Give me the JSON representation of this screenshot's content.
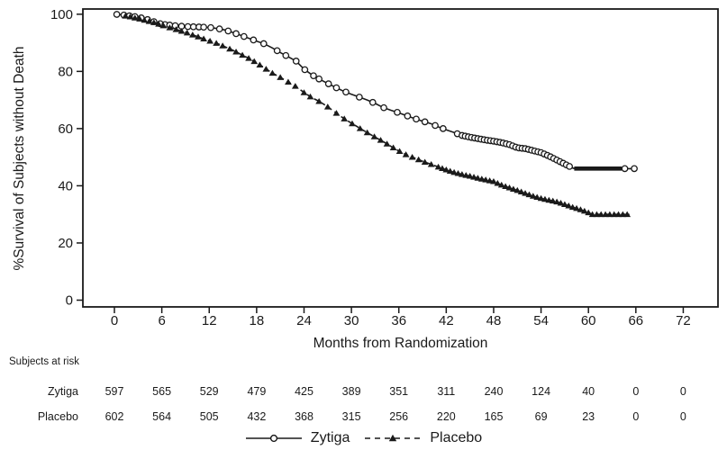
{
  "colors": {
    "ink": "#1a1a1a",
    "background": "#ffffff"
  },
  "chart_data": {
    "type": "line",
    "subtype": "kaplan-meier",
    "title": "",
    "xlabel": "Months from Randomization",
    "ylabel": "%Survival of Subjects without Death",
    "xlim": [
      0,
      72
    ],
    "ylim": [
      0,
      100
    ],
    "x_ticks": [
      0,
      6,
      12,
      18,
      24,
      30,
      36,
      42,
      48,
      54,
      60,
      66,
      72
    ],
    "y_ticks": [
      0,
      20,
      40,
      60,
      80,
      100
    ],
    "grid": false,
    "legend_position": "bottom-center",
    "series": [
      {
        "name": "Zytiga",
        "line_style": "solid",
        "marker": "open-circle",
        "points": [
          [
            0,
            100
          ],
          [
            1,
            99.8
          ],
          [
            2,
            99.4
          ],
          [
            3,
            99.0
          ],
          [
            4,
            98.3
          ],
          [
            5,
            97.4
          ],
          [
            6,
            96.5
          ],
          [
            7,
            96.2
          ],
          [
            8,
            95.9
          ],
          [
            9,
            95.7
          ],
          [
            10,
            95.6
          ],
          [
            11,
            95.5
          ],
          [
            12,
            95.4
          ],
          [
            13,
            95.0
          ],
          [
            14,
            94.5
          ],
          [
            15,
            93.6
          ],
          [
            16,
            92.6
          ],
          [
            17,
            91.6
          ],
          [
            18,
            90.6
          ],
          [
            19,
            89.6
          ],
          [
            20,
            88.2
          ],
          [
            21,
            86.6
          ],
          [
            22,
            85.1
          ],
          [
            23,
            83.6
          ],
          [
            24,
            80.8
          ],
          [
            25,
            78.8
          ],
          [
            26,
            77.2
          ],
          [
            27,
            75.8
          ],
          [
            28,
            74.4
          ],
          [
            29,
            73.1
          ],
          [
            30,
            72.0
          ],
          [
            31,
            71.0
          ],
          [
            32,
            70.0
          ],
          [
            33,
            68.8
          ],
          [
            34,
            67.4
          ],
          [
            35,
            66.4
          ],
          [
            36,
            65.5
          ],
          [
            37,
            64.5
          ],
          [
            38,
            63.5
          ],
          [
            39,
            62.6
          ],
          [
            40,
            61.8
          ],
          [
            41,
            60.6
          ],
          [
            42,
            59.6
          ],
          [
            43,
            58.6
          ],
          [
            44,
            57.6
          ],
          [
            45,
            57.0
          ],
          [
            46,
            56.5
          ],
          [
            47,
            56.0
          ],
          [
            48,
            55.6
          ],
          [
            49,
            55.1
          ],
          [
            50,
            54.4
          ],
          [
            51,
            53.3
          ],
          [
            52,
            53.0
          ],
          [
            53,
            52.3
          ],
          [
            54,
            51.6
          ],
          [
            55,
            50.4
          ],
          [
            56,
            49.0
          ],
          [
            57,
            47.6
          ],
          [
            58,
            46.2
          ],
          [
            58.3,
            46.0
          ],
          [
            65.8,
            46.0
          ]
        ],
        "censor_marker_months": [
          0.3,
          1.2,
          1.9,
          2.6,
          3.4,
          4.2,
          5.0,
          5.8,
          6.4,
          7.0,
          7.7,
          8.5,
          9.3,
          10.0,
          10.7,
          11.3,
          12.2,
          13.3,
          14.4,
          15.4,
          16.4,
          17.6,
          18.9,
          20.6,
          21.7,
          23.0,
          24.1,
          25.2,
          25.9,
          27.1,
          28.1,
          29.3,
          31.0,
          32.7,
          34.1,
          35.8,
          37.1,
          38.2,
          39.3,
          40.6,
          41.6,
          43.4
        ],
        "dense_censor_ranges": [
          [
            44.0,
            57.6,
            0.4
          ]
        ],
        "thick_plateau": {
          "from": 58.2,
          "to": 64.2,
          "pct": 46
        },
        "end_marker_months": [
          64.6,
          65.8
        ]
      },
      {
        "name": "Placebo",
        "line_style": "dashed",
        "marker": "filled-triangle",
        "points": [
          [
            0,
            100
          ],
          [
            1,
            99.6
          ],
          [
            2,
            99.1
          ],
          [
            3,
            98.5
          ],
          [
            4,
            97.8
          ],
          [
            5,
            97.1
          ],
          [
            6,
            96.2
          ],
          [
            7,
            95.3
          ],
          [
            8,
            94.5
          ],
          [
            9,
            93.7
          ],
          [
            10,
            92.7
          ],
          [
            11,
            91.7
          ],
          [
            12,
            90.7
          ],
          [
            13,
            89.8
          ],
          [
            14,
            88.6
          ],
          [
            15,
            87.4
          ],
          [
            16,
            86.0
          ],
          [
            17,
            84.6
          ],
          [
            18,
            83.0
          ],
          [
            19,
            81.2
          ],
          [
            20,
            79.4
          ],
          [
            21,
            77.9
          ],
          [
            22,
            76.3
          ],
          [
            23,
            74.7
          ],
          [
            24,
            72.6
          ],
          [
            25,
            70.8
          ],
          [
            26,
            69.4
          ],
          [
            27,
            67.6
          ],
          [
            28,
            65.6
          ],
          [
            29,
            63.6
          ],
          [
            30,
            61.9
          ],
          [
            31,
            60.2
          ],
          [
            32,
            58.6
          ],
          [
            33,
            57.0
          ],
          [
            34,
            55.5
          ],
          [
            35,
            53.8
          ],
          [
            36,
            52.2
          ],
          [
            37,
            50.8
          ],
          [
            38,
            49.7
          ],
          [
            39,
            48.6
          ],
          [
            40,
            47.6
          ],
          [
            41,
            46.6
          ],
          [
            42,
            45.6
          ],
          [
            43,
            44.7
          ],
          [
            44,
            44.0
          ],
          [
            45,
            43.4
          ],
          [
            46,
            42.7
          ],
          [
            47,
            42.1
          ],
          [
            48,
            41.5
          ],
          [
            49,
            40.3
          ],
          [
            50,
            39.3
          ],
          [
            51,
            38.4
          ],
          [
            52,
            37.4
          ],
          [
            53,
            36.4
          ],
          [
            54,
            35.6
          ],
          [
            55,
            35.0
          ],
          [
            56,
            34.4
          ],
          [
            57,
            33.5
          ],
          [
            58,
            32.5
          ],
          [
            59,
            31.7
          ],
          [
            60,
            30.6
          ],
          [
            60.5,
            30.0
          ],
          [
            65.2,
            30.0
          ]
        ],
        "censor_marker_months": [
          1.4,
          2.0,
          2.6,
          3.2,
          3.8,
          4.4,
          5.0,
          5.6,
          6.2,
          7.0,
          7.8,
          8.5,
          9.2,
          9.9,
          10.6,
          11.3,
          12.1,
          12.9,
          13.7,
          14.6,
          15.4,
          16.2,
          17.0,
          17.7,
          18.4,
          19.2,
          20.0,
          21.0,
          22.0,
          22.9,
          24.0,
          24.8,
          25.9,
          27.0,
          28.1,
          29.1,
          30.1,
          31.1,
          32.0,
          32.9,
          33.7,
          34.5,
          35.3,
          36.1,
          36.9,
          37.7,
          38.5,
          39.3,
          40.1
        ],
        "dense_censor_ranges": [
          [
            41.0,
            60.0,
            0.5
          ],
          [
            60.5,
            65.1,
            0.55
          ]
        ],
        "thick_plateau": null,
        "end_marker_months": []
      }
    ]
  },
  "risk_table": {
    "heading": "Subjects at risk",
    "months": [
      0,
      6,
      12,
      18,
      24,
      30,
      36,
      42,
      48,
      54,
      60,
      66,
      72
    ],
    "rows": [
      {
        "label": "Zytiga",
        "values": [
          597,
          565,
          529,
          479,
          425,
          389,
          351,
          311,
          240,
          124,
          40,
          0,
          0
        ]
      },
      {
        "label": "Placebo",
        "values": [
          602,
          564,
          505,
          432,
          368,
          315,
          256,
          220,
          165,
          69,
          23,
          0,
          0
        ]
      }
    ]
  },
  "legend": {
    "items": [
      {
        "label": "Zytiga",
        "line_style": "solid",
        "marker": "open-circle"
      },
      {
        "label": "Placebo",
        "line_style": "dashed",
        "marker": "filled-triangle"
      }
    ]
  }
}
